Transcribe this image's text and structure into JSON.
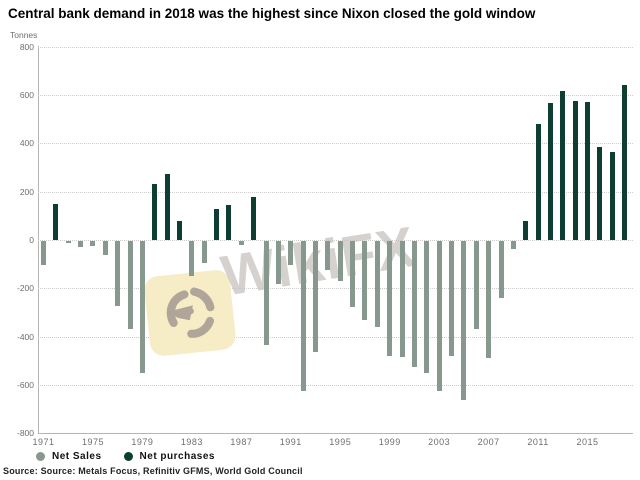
{
  "title": "Central bank demand in 2018 was the highest since Nixon closed the gold window",
  "y_axis_unit": "Tonnes",
  "legend": {
    "net_sales_label": "Net Sales",
    "net_purchases_label": "Net purchases"
  },
  "source_line": "Source: Source: Metals Focus, Refinitiv GFMS, World Gold Council",
  "watermark": {
    "text": "WikiFX",
    "badge_color": "#f6ecc6",
    "logo_icon": "eagle-icon"
  },
  "colors": {
    "net_sales": "#87988e",
    "net_purchases": "#0d3e31",
    "gridline": "#cccccc",
    "axis": "#b4b4b4",
    "tick_text": "#6e6e6e"
  },
  "chart_data": {
    "type": "bar",
    "title": "Central bank demand in 2018 was the highest since Nixon closed the gold window",
    "xlabel": "",
    "ylabel": "Tonnes",
    "ylim": [
      -800,
      800
    ],
    "grid": "horizontal-dotted",
    "legend_position": "bottom-left",
    "legend_rule": "negative values = Net Sales (light), positive values = Net purchases (dark)",
    "y_ticks": [
      800,
      600,
      400,
      200,
      0,
      -200,
      -400,
      -600,
      -800
    ],
    "x_tick_years": [
      1971,
      1975,
      1979,
      1983,
      1987,
      1991,
      1995,
      1999,
      2003,
      2007,
      2011,
      2015
    ],
    "x": [
      1971,
      1972,
      1973,
      1974,
      1975,
      1976,
      1977,
      1978,
      1979,
      1980,
      1981,
      1982,
      1983,
      1984,
      1985,
      1986,
      1987,
      1988,
      1989,
      1990,
      1991,
      1992,
      1993,
      1994,
      1995,
      1996,
      1997,
      1998,
      1999,
      2000,
      2001,
      2002,
      2003,
      2004,
      2005,
      2006,
      2007,
      2008,
      2009,
      2010,
      2011,
      2012,
      2013,
      2014,
      2015,
      2016,
      2017,
      2018
    ],
    "values": [
      -100,
      150,
      -10,
      -25,
      -20,
      -60,
      -270,
      -365,
      -545,
      230,
      275,
      80,
      -145,
      -90,
      130,
      145,
      -15,
      180,
      -430,
      -180,
      -100,
      -620,
      -460,
      -120,
      -165,
      -275,
      -325,
      -355,
      -475,
      -480,
      -520,
      -545,
      -620,
      -475,
      -660,
      -365,
      -485,
      -235,
      -35,
      80,
      480,
      565,
      615,
      575,
      570,
      385,
      365,
      640
    ]
  }
}
